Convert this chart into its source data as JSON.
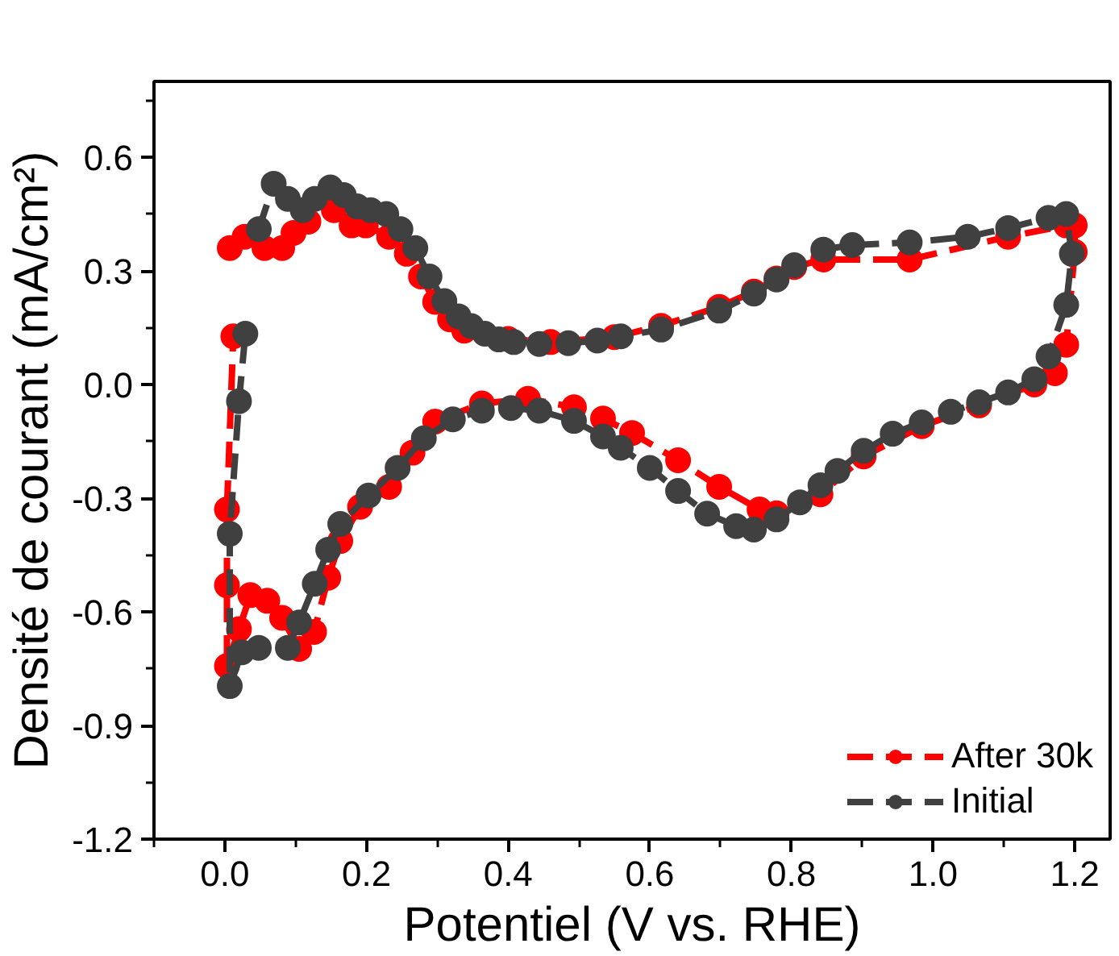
{
  "chart_data": {
    "type": "line",
    "xlabel": "Potentiel (V vs. RHE)",
    "ylabel": "Densité de courant (mA/cm²)",
    "xlim": [
      -0.1,
      1.25
    ],
    "ylim": [
      -1.2,
      0.8
    ],
    "xticks": [
      {
        "value": -0.1,
        "label": null
      },
      {
        "value": 0,
        "label": "0.0"
      },
      {
        "value": 0.1,
        "label": null
      },
      {
        "value": 0.2,
        "label": "0.2"
      },
      {
        "value": 0.3,
        "label": null
      },
      {
        "value": 0.4,
        "label": "0.4"
      },
      {
        "value": 0.5,
        "label": null
      },
      {
        "value": 0.6,
        "label": "0.6"
      },
      {
        "value": 0.7,
        "label": null
      },
      {
        "value": 0.8,
        "label": "0.8"
      },
      {
        "value": 0.9,
        "label": null
      },
      {
        "value": 1,
        "label": "1.0"
      },
      {
        "value": 1.1,
        "label": null
      },
      {
        "value": 1.2,
        "label": "1.2"
      }
    ],
    "yticks": [
      {
        "value": -1.2,
        "label": "-1.2"
      },
      {
        "value": -1.05,
        "label": null
      },
      {
        "value": -0.9,
        "label": "-0.9"
      },
      {
        "value": -0.75,
        "label": null
      },
      {
        "value": -0.6,
        "label": "-0.6"
      },
      {
        "value": -0.45,
        "label": null
      },
      {
        "value": -0.3,
        "label": "-0.3"
      },
      {
        "value": -0.15,
        "label": null
      },
      {
        "value": 0,
        "label": "0.0"
      },
      {
        "value": 0.15,
        "label": null
      },
      {
        "value": 0.3,
        "label": "0.3"
      },
      {
        "value": 0.45,
        "label": null
      },
      {
        "value": 0.6,
        "label": "0.6"
      },
      {
        "value": 0.75,
        "label": null
      }
    ],
    "grid": false,
    "legend": "bottom right",
    "marker": "circle",
    "line_style": "dashed",
    "series": [
      {
        "name": "After 30k",
        "color": "#ff0000",
        "x": [
          0.007,
          0.028,
          0.056,
          0.081,
          0.097,
          0.118,
          0.154,
          0.179,
          0.199,
          0.232,
          0.257,
          0.277,
          0.297,
          0.318,
          0.338,
          0.4,
          0.46,
          0.55,
          0.616,
          0.698,
          0.747,
          0.779,
          0.804,
          0.845,
          0.967,
          1.106,
          1.188,
          1.2,
          1.2,
          1.188,
          1.172,
          1.143,
          1.065,
          0.984,
          0.902,
          0.841,
          0.779,
          0.755,
          0.698,
          0.64,
          0.575,
          0.534,
          0.493,
          0.428,
          0.363,
          0.297,
          0.265,
          0.232,
          0.191,
          0.163,
          0.146,
          0.126,
          0.105,
          0.081,
          0.06,
          0.036,
          0.02,
          0.003,
          0.003,
          0.003,
          0.012
        ],
        "values": [
          0.36,
          0.39,
          0.36,
          0.36,
          0.4,
          0.43,
          0.46,
          0.42,
          0.42,
          0.39,
          0.345,
          0.285,
          0.218,
          0.172,
          0.142,
          0.12,
          0.112,
          0.125,
          0.155,
          0.205,
          0.245,
          0.28,
          0.31,
          0.33,
          0.33,
          0.39,
          0.42,
          0.42,
          0.35,
          0.105,
          0.03,
          0.0,
          -0.055,
          -0.11,
          -0.19,
          -0.29,
          -0.34,
          -0.33,
          -0.27,
          -0.2,
          -0.128,
          -0.09,
          -0.06,
          -0.038,
          -0.05,
          -0.098,
          -0.18,
          -0.27,
          -0.323,
          -0.413,
          -0.51,
          -0.653,
          -0.698,
          -0.616,
          -0.571,
          -0.556,
          -0.646,
          -0.743,
          -0.53,
          -0.33,
          0.127
        ]
      },
      {
        "name": "Initial",
        "color": "#404040",
        "x": [
          0.048,
          0.069,
          0.089,
          0.11,
          0.127,
          0.149,
          0.168,
          0.187,
          0.206,
          0.228,
          0.248,
          0.269,
          0.289,
          0.31,
          0.33,
          0.348,
          0.367,
          0.387,
          0.408,
          0.444,
          0.485,
          0.526,
          0.559,
          0.616,
          0.698,
          0.747,
          0.779,
          0.804,
          0.845,
          0.886,
          0.967,
          1.049,
          1.106,
          1.163,
          1.188,
          1.196,
          1.188,
          1.163,
          1.143,
          1.106,
          1.065,
          1.025,
          0.984,
          0.943,
          0.902,
          0.865,
          0.841,
          0.812,
          0.779,
          0.747,
          0.722,
          0.681,
          0.64,
          0.6,
          0.559,
          0.534,
          0.493,
          0.444,
          0.404,
          0.363,
          0.322,
          0.281,
          0.244,
          0.203,
          0.163,
          0.146,
          0.127,
          0.105,
          0.089,
          0.048,
          0.024,
          0.007,
          0.007,
          0.02,
          0.029
        ],
        "values": [
          0.41,
          0.53,
          0.49,
          0.46,
          0.49,
          0.52,
          0.5,
          0.47,
          0.46,
          0.45,
          0.41,
          0.36,
          0.285,
          0.22,
          0.18,
          0.154,
          0.134,
          0.119,
          0.112,
          0.107,
          0.109,
          0.116,
          0.127,
          0.145,
          0.195,
          0.24,
          0.277,
          0.315,
          0.356,
          0.368,
          0.375,
          0.39,
          0.413,
          0.44,
          0.45,
          0.345,
          0.21,
          0.074,
          0.014,
          -0.021,
          -0.047,
          -0.072,
          -0.1,
          -0.13,
          -0.175,
          -0.228,
          -0.266,
          -0.311,
          -0.356,
          -0.383,
          -0.374,
          -0.341,
          -0.281,
          -0.22,
          -0.167,
          -0.137,
          -0.096,
          -0.069,
          -0.062,
          -0.069,
          -0.092,
          -0.142,
          -0.22,
          -0.293,
          -0.368,
          -0.436,
          -0.526,
          -0.628,
          -0.695,
          -0.695,
          -0.707,
          -0.796,
          -0.394,
          -0.044,
          0.134
        ]
      }
    ]
  }
}
